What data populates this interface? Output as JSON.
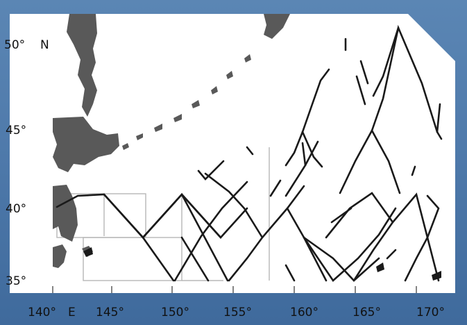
{
  "map": {
    "lat_labels": [
      {
        "text": "50°",
        "lat": 50
      },
      {
        "text": "45°",
        "lat": 45
      },
      {
        "text": "40°",
        "lat": 40
      },
      {
        "text": "35°",
        "lat": 35
      }
    ],
    "lon_labels": [
      {
        "text": "140°",
        "lon": 140
      },
      {
        "text": "145°",
        "lon": 145
      },
      {
        "text": "150°",
        "lon": 150
      },
      {
        "text": "155°",
        "lon": 155
      },
      {
        "text": "160°",
        "lon": 160
      },
      {
        "text": "165°",
        "lon": 165
      },
      {
        "text": "170°",
        "lon": 170
      }
    ],
    "north_label": "N",
    "east_label": "E",
    "colors": {
      "background": "#4f7aab",
      "map": "#ffffff",
      "land": "#595959",
      "track": "#1a1a1a",
      "box": "#b0b0b0"
    },
    "extent": {
      "lon_min": 140,
      "lon_max": 171,
      "lat_min": 35,
      "lat_max": 51.7
    }
  }
}
